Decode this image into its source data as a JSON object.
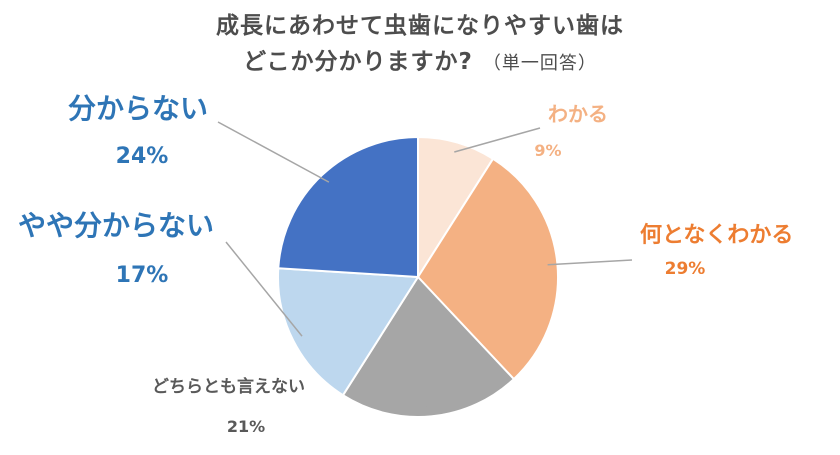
{
  "chart_data": {
    "type": "pie",
    "title_line1": "成長にあわせて虫歯になりやすい歯は",
    "title_line2": "どこか分かりますか?",
    "title_note": "（単一回答）",
    "start_angle_deg": 0,
    "direction": "clockwise",
    "slices": [
      {
        "label": "わかる",
        "value": 9,
        "value_label": "9%",
        "color": "#fbe5d6",
        "text_color": "#f4b183"
      },
      {
        "label": "何となくわかる",
        "value": 29,
        "value_label": "29%",
        "color": "#f4b183",
        "text_color": "#ed7d31"
      },
      {
        "label": "どちらとも言えない",
        "value": 21,
        "value_label": "21%",
        "color": "#a6a6a6",
        "text_color": "#595959"
      },
      {
        "label": "やや分からない",
        "value": 17,
        "value_label": "17%",
        "color": "#bdd7ee",
        "text_color": "#2e75b6"
      },
      {
        "label": "分からない",
        "value": 24,
        "value_label": "24%",
        "color": "#4472c4",
        "text_color": "#2e75b6"
      }
    ],
    "legend": "none",
    "leader_color": "#a6a6a6"
  }
}
